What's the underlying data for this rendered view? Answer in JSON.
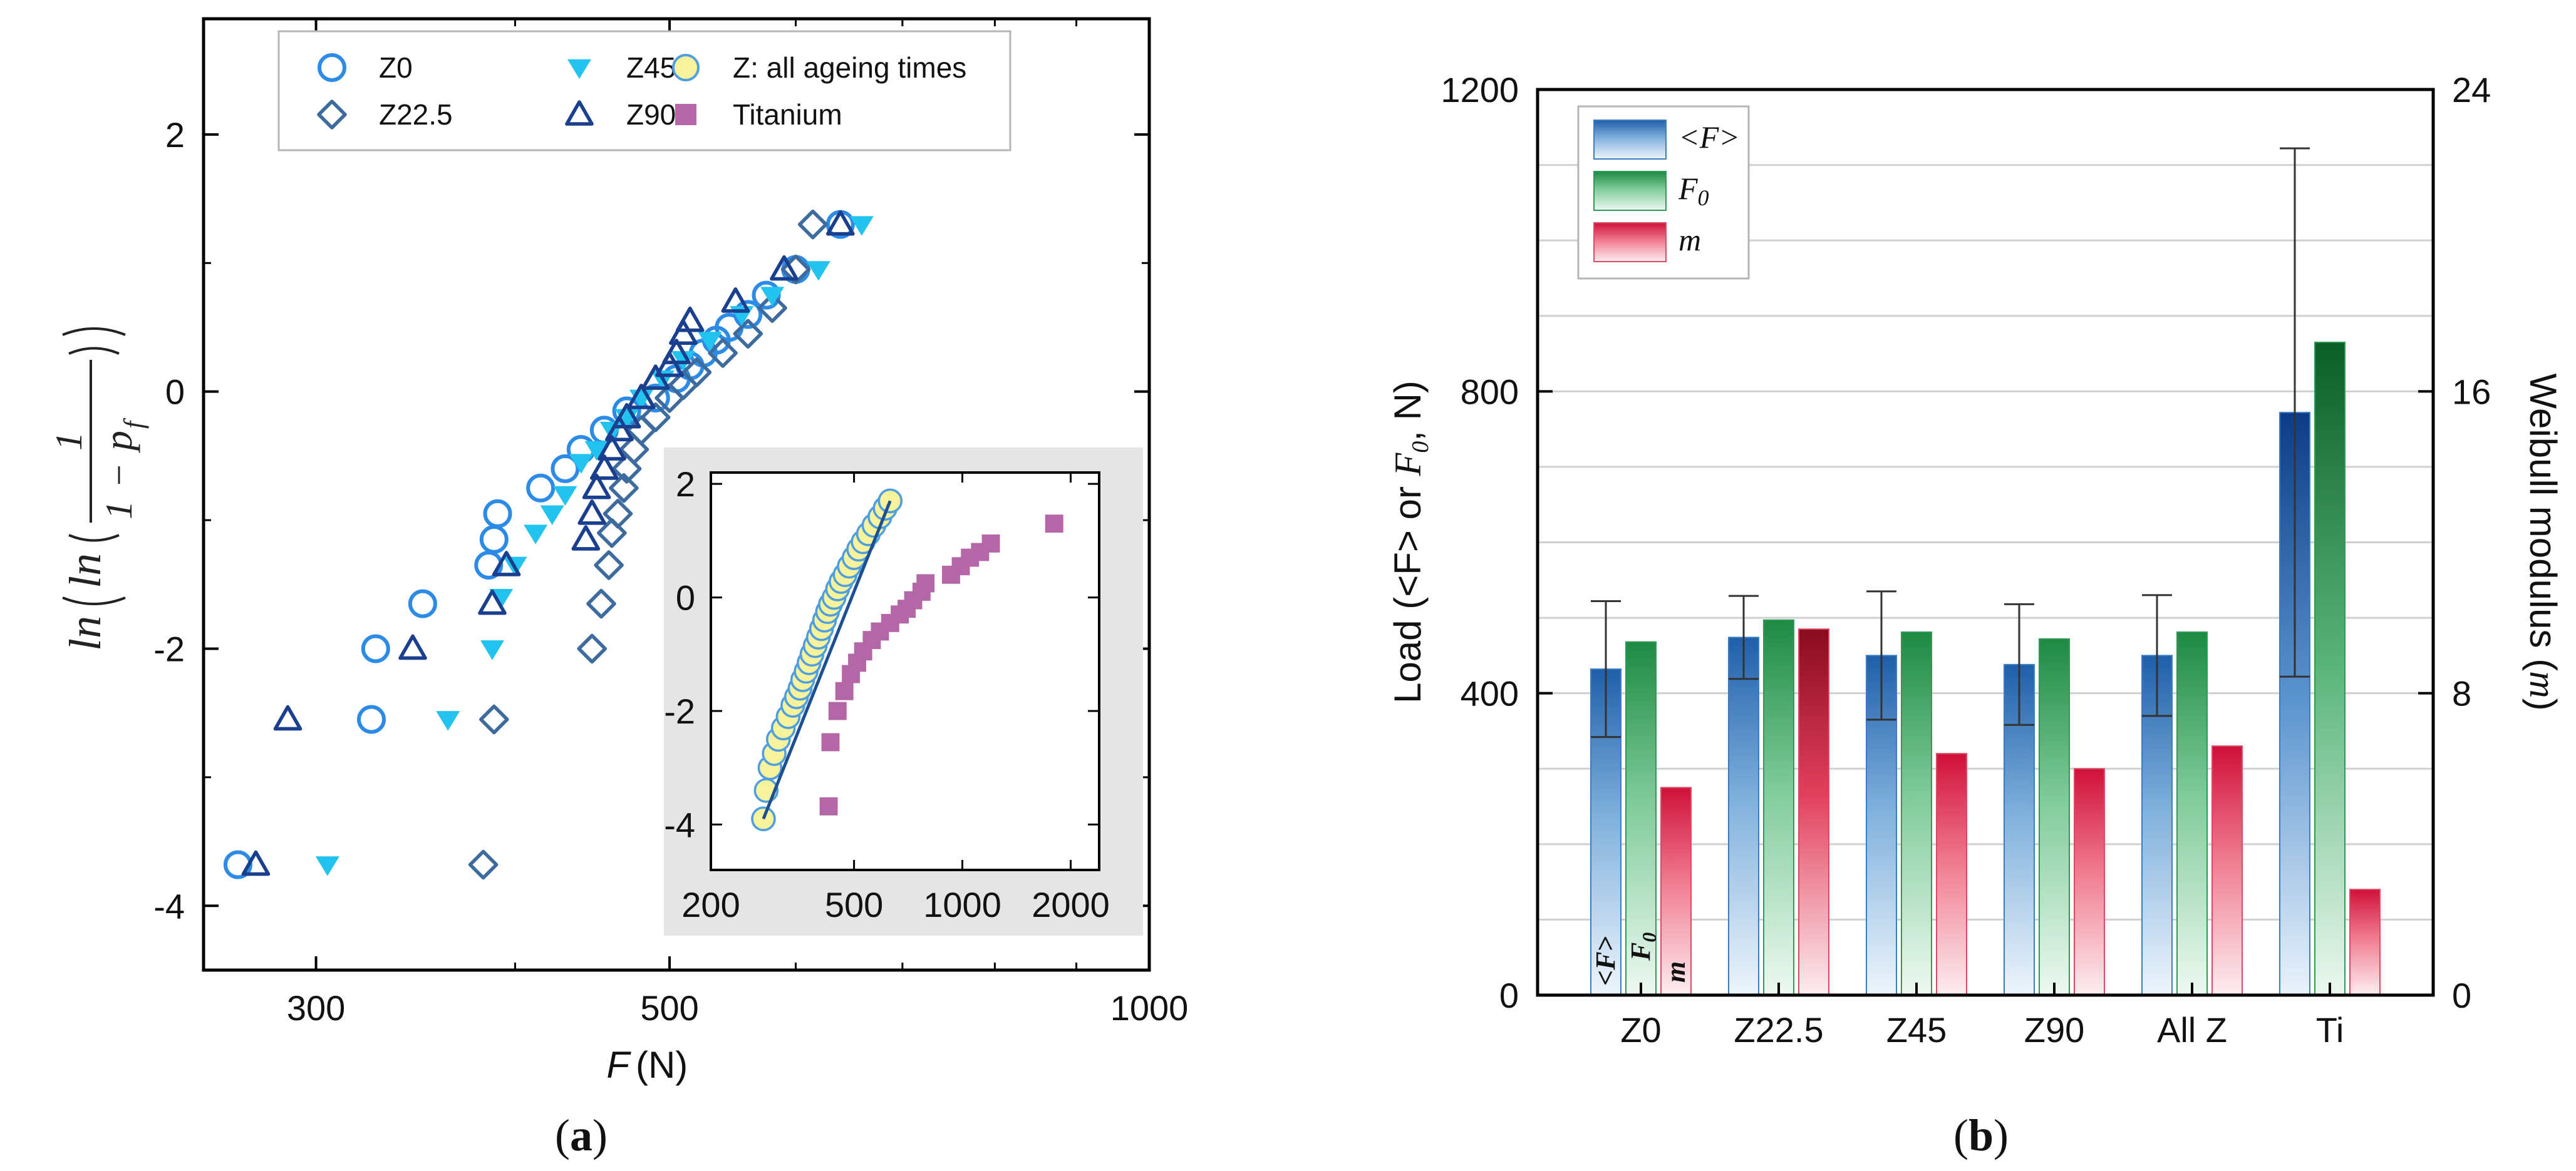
{
  "panel_a": {
    "label_letter": "a",
    "ylabel_parts": {
      "ln_outer": "ln",
      "ln_inner": "ln",
      "numerator": "1",
      "one": "1",
      "minus": "−",
      "p": "p",
      "f": "f"
    },
    "legend": [
      {
        "name": "Z0",
        "marker": "circle-open",
        "color": "#2b8be6"
      },
      {
        "name": "Z22.5",
        "marker": "diamond-open",
        "color": "#3e6b9e"
      },
      {
        "name": "Z45",
        "marker": "triangle-down",
        "color": "#22c3ee"
      },
      {
        "name": "Z90",
        "marker": "triangle-open",
        "color": "#1a3f8f"
      },
      {
        "name": "Z: all ageing times",
        "marker": "circle-yellow",
        "color": "#f6f39c"
      },
      {
        "name": "Titanium",
        "marker": "square",
        "color": "#b467a6"
      }
    ]
  },
  "panel_b": {
    "label_letter": "b",
    "legend": [
      {
        "name": "<F>",
        "color": "#1a5fb0"
      },
      {
        "name": "F",
        "sub": "0",
        "color": "#1a8a3e"
      },
      {
        "name": "m",
        "color": "#d81e3c"
      }
    ],
    "bar_inner_labels": {
      "f": "<F>",
      "f0": "F",
      "f0sub": "0",
      "m": "m"
    }
  },
  "chart_data": [
    {
      "type": "scatter",
      "title": "",
      "xlabel": "F (N)",
      "xlabel_parts": {
        "var": "F",
        "unit": "(N)"
      },
      "ylabel": "ln(ln(1/(1−p_f)))",
      "xscale": "log",
      "xlim": [
        255,
        1000
      ],
      "ylim": [
        -4.5,
        2.9
      ],
      "xticks": [
        300,
        500,
        1000
      ],
      "xtick_labels": [
        "300",
        "500",
        "1000"
      ],
      "yticks": [
        -4,
        -2,
        0,
        2
      ],
      "ytick_labels": [
        "-4",
        "-2",
        "0",
        "2"
      ],
      "legend_position": "top",
      "series": [
        {
          "name": "Z0",
          "points": [
            [
              268,
              -3.68
            ],
            [
              325,
              -2.55
            ],
            [
              327,
              -2.0
            ],
            [
              350,
              -1.65
            ],
            [
              385,
              -1.35
            ],
            [
              388,
              -1.15
            ],
            [
              390,
              -0.95
            ],
            [
              415,
              -0.75
            ],
            [
              430,
              -0.6
            ],
            [
              440,
              -0.45
            ],
            [
              455,
              -0.3
            ],
            [
              470,
              -0.15
            ],
            [
              490,
              -0.05
            ],
            [
              505,
              0.1
            ],
            [
              515,
              0.2
            ],
            [
              525,
              0.3
            ],
            [
              535,
              0.4
            ],
            [
              545,
              0.5
            ],
            [
              560,
              0.6
            ],
            [
              575,
              0.75
            ],
            [
              600,
              0.95
            ],
            [
              640,
              1.3
            ]
          ]
        },
        {
          "name": "Z22.5",
          "points": [
            [
              382,
              -3.68
            ],
            [
              388,
              -2.55
            ],
            [
              447,
              -2.0
            ],
            [
              453,
              -1.65
            ],
            [
              458,
              -1.35
            ],
            [
              460,
              -1.1
            ],
            [
              464,
              -0.95
            ],
            [
              468,
              -0.75
            ],
            [
              470,
              -0.6
            ],
            [
              475,
              -0.45
            ],
            [
              480,
              -0.3
            ],
            [
              490,
              -0.2
            ],
            [
              500,
              -0.05
            ],
            [
              510,
              0.05
            ],
            [
              520,
              0.15
            ],
            [
              540,
              0.3
            ],
            [
              560,
              0.45
            ],
            [
              580,
              0.65
            ],
            [
              600,
              0.95
            ],
            [
              615,
              1.3
            ]
          ]
        },
        {
          "name": "Z45",
          "points": [
            [
              305,
              -3.68
            ],
            [
              363,
              -2.55
            ],
            [
              387,
              -2.0
            ],
            [
              392,
              -1.6
            ],
            [
              400,
              -1.35
            ],
            [
              412,
              -1.1
            ],
            [
              422,
              -0.95
            ],
            [
              430,
              -0.8
            ],
            [
              440,
              -0.55
            ],
            [
              450,
              -0.45
            ],
            [
              460,
              -0.3
            ],
            [
              470,
              -0.2
            ],
            [
              480,
              -0.05
            ],
            [
              495,
              0.1
            ],
            [
              510,
              0.25
            ],
            [
              530,
              0.4
            ],
            [
              555,
              0.6
            ],
            [
              580,
              0.75
            ],
            [
              620,
              0.95
            ],
            [
              660,
              1.3
            ]
          ]
        },
        {
          "name": "Z90",
          "points": [
            [
              275,
              -3.68
            ],
            [
              288,
              -2.55
            ],
            [
              345,
              -2.0
            ],
            [
              387,
              -1.65
            ],
            [
              395,
              -1.35
            ],
            [
              443,
              -1.15
            ],
            [
              447,
              -0.95
            ],
            [
              450,
              -0.75
            ],
            [
              455,
              -0.6
            ],
            [
              460,
              -0.45
            ],
            [
              465,
              -0.3
            ],
            [
              470,
              -0.2
            ],
            [
              480,
              -0.05
            ],
            [
              490,
              0.1
            ],
            [
              500,
              0.2
            ],
            [
              505,
              0.3
            ],
            [
              510,
              0.45
            ],
            [
              515,
              0.55
            ],
            [
              550,
              0.7
            ],
            [
              590,
              0.95
            ],
            [
              640,
              1.3
            ]
          ]
        }
      ]
    },
    {
      "type": "scatter",
      "title": "",
      "xscale": "log",
      "xlim": [
        200,
        2400
      ],
      "ylim": [
        -4.8,
        2.2
      ],
      "xticks": [
        200,
        500,
        1000,
        2000
      ],
      "xtick_labels": [
        "200",
        "500",
        "1000",
        "2000"
      ],
      "yticks": [
        -4,
        -2,
        0,
        2
      ],
      "ytick_labels": [
        "-4",
        "-2",
        "0",
        "2"
      ],
      "fit_line": {
        "x": [
          280,
          630
        ],
        "y": [
          -3.9,
          1.7
        ]
      },
      "series": [
        {
          "name": "Z: all ageing times",
          "points": [
            [
              280,
              -3.9
            ],
            [
              285,
              -3.4
            ],
            [
              292,
              -3.0
            ],
            [
              300,
              -2.75
            ],
            [
              308,
              -2.5
            ],
            [
              318,
              -2.3
            ],
            [
              328,
              -2.1
            ],
            [
              338,
              -1.9
            ],
            [
              346,
              -1.75
            ],
            [
              354,
              -1.6
            ],
            [
              360,
              -1.45
            ],
            [
              368,
              -1.3
            ],
            [
              375,
              -1.15
            ],
            [
              382,
              -1.0
            ],
            [
              390,
              -0.85
            ],
            [
              398,
              -0.7
            ],
            [
              406,
              -0.55
            ],
            [
              414,
              -0.4
            ],
            [
              422,
              -0.25
            ],
            [
              430,
              -0.12
            ],
            [
              440,
              0.0
            ],
            [
              450,
              0.15
            ],
            [
              460,
              0.28
            ],
            [
              472,
              0.4
            ],
            [
              485,
              0.55
            ],
            [
              500,
              0.7
            ],
            [
              515,
              0.85
            ],
            [
              530,
              0.98
            ],
            [
              548,
              1.12
            ],
            [
              568,
              1.27
            ],
            [
              590,
              1.42
            ],
            [
              610,
              1.57
            ],
            [
              630,
              1.7
            ]
          ]
        },
        {
          "name": "Titanium",
          "points": [
            [
              425,
              -3.68
            ],
            [
              430,
              -2.55
            ],
            [
              450,
              -2.0
            ],
            [
              470,
              -1.65
            ],
            [
              490,
              -1.35
            ],
            [
              510,
              -1.15
            ],
            [
              530,
              -0.95
            ],
            [
              560,
              -0.75
            ],
            [
              590,
              -0.6
            ],
            [
              630,
              -0.45
            ],
            [
              670,
              -0.3
            ],
            [
              700,
              -0.2
            ],
            [
              730,
              -0.05
            ],
            [
              770,
              0.1
            ],
            [
              790,
              0.25
            ],
            [
              930,
              0.4
            ],
            [
              990,
              0.55
            ],
            [
              1050,
              0.7
            ],
            [
              1120,
              0.8
            ],
            [
              1200,
              0.95
            ],
            [
              1800,
              1.3
            ]
          ]
        }
      ]
    },
    {
      "type": "bar",
      "title": "",
      "categories": [
        "Z0",
        "Z22.5",
        "Z45",
        "Z90",
        "All Z",
        "Ti"
      ],
      "ylabel": "Load (<F> or F0, N)",
      "ylabel_parts": {
        "a": "Load (<F> or ",
        "b": "F",
        "c": "0",
        "d": ", N)"
      },
      "y2label": "Weibull modulus (m)",
      "y2label_parts": {
        "a": "Weibull modulus (",
        "b": "m",
        "c": ")"
      },
      "ylim": [
        0,
        1200
      ],
      "y2lim": [
        0,
        24
      ],
      "yticks": [
        0,
        400,
        800,
        1200
      ],
      "ytick_labels": [
        "0",
        "400",
        "800",
        "1200"
      ],
      "y2ticks": [
        0,
        8,
        16,
        24
      ],
      "y2tick_labels": [
        "0",
        "8",
        "16",
        "24"
      ],
      "grid": true,
      "legend_position": "top-left",
      "series": [
        {
          "name": "<F>",
          "axis": "left",
          "values": [
            432,
            474,
            450,
            438,
            450,
            772
          ],
          "error": [
            90,
            55,
            85,
            80,
            80,
            350
          ]
        },
        {
          "name": "F0",
          "axis": "left",
          "values": [
            468,
            497,
            481,
            472,
            481,
            865
          ]
        },
        {
          "name": "m",
          "axis": "right",
          "values": [
            5.5,
            9.7,
            6.4,
            6.0,
            6.6,
            2.8
          ]
        }
      ]
    }
  ]
}
